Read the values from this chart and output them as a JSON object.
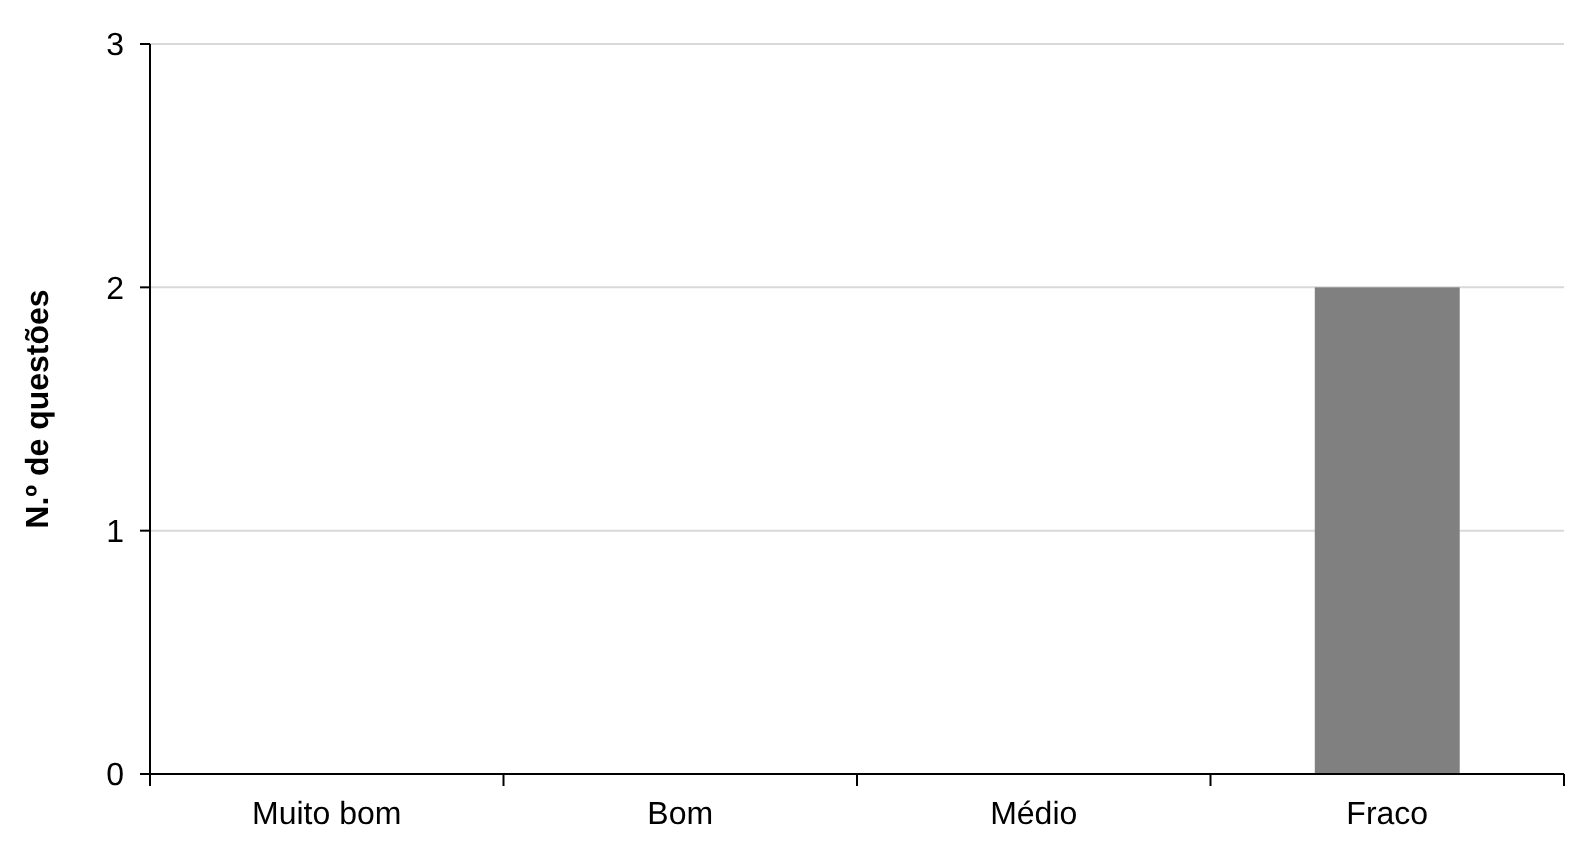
{
  "chart_data": {
    "type": "bar",
    "ylabel": "N.º de questões",
    "categories": [
      "Muito bom",
      "Bom",
      "Médio",
      "Fraco"
    ],
    "values": [
      0,
      0,
      0,
      2
    ],
    "color": "#808080",
    "ylim": [
      0,
      3
    ],
    "yticks": [
      0,
      1,
      2,
      3
    ],
    "grid": "y"
  }
}
